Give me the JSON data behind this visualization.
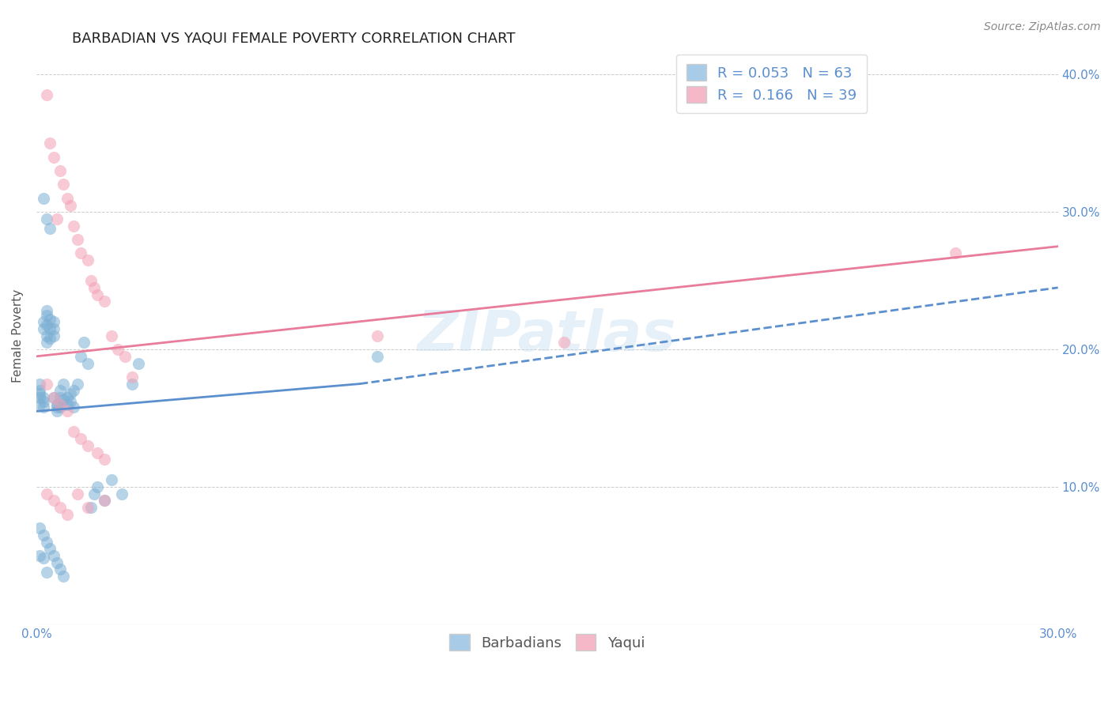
{
  "title": "BARBADIAN VS YAQUI FEMALE POVERTY CORRELATION CHART",
  "source": "Source: ZipAtlas.com",
  "ylabel": "Female Poverty",
  "watermark": "ZIPatlas",
  "xlim": [
    0.0,
    0.3
  ],
  "ylim": [
    0.0,
    0.42
  ],
  "x_tick_positions": [
    0.0,
    0.05,
    0.1,
    0.15,
    0.2,
    0.25,
    0.3
  ],
  "x_tick_labels": [
    "0.0%",
    "",
    "",
    "",
    "",
    "",
    "30.0%"
  ],
  "y_tick_positions": [
    0.0,
    0.1,
    0.2,
    0.3,
    0.4
  ],
  "y_tick_labels_right": [
    "",
    "10.0%",
    "20.0%",
    "30.0%",
    "40.0%"
  ],
  "barbadian_color": "#7bafd4",
  "yaqui_color": "#f4a0b5",
  "barbadian_line_color": "#5b8fce",
  "yaqui_line_color": "#e87c9a",
  "legend_box_barbadian": "#a8cce8",
  "legend_box_yaqui": "#f4b8c8",
  "R_barbadian": 0.053,
  "N_barbadian": 63,
  "R_yaqui": 0.166,
  "N_yaqui": 39,
  "barbadian_x": [
    0.001,
    0.001,
    0.001,
    0.001,
    0.001,
    0.002,
    0.002,
    0.002,
    0.002,
    0.002,
    0.003,
    0.003,
    0.003,
    0.003,
    0.003,
    0.004,
    0.004,
    0.004,
    0.005,
    0.005,
    0.005,
    0.005,
    0.006,
    0.006,
    0.006,
    0.007,
    0.007,
    0.007,
    0.008,
    0.008,
    0.009,
    0.009,
    0.01,
    0.01,
    0.011,
    0.011,
    0.012,
    0.013,
    0.014,
    0.015,
    0.016,
    0.017,
    0.018,
    0.02,
    0.022,
    0.025,
    0.028,
    0.03,
    0.001,
    0.002,
    0.003,
    0.004,
    0.005,
    0.006,
    0.007,
    0.008,
    0.1,
    0.002,
    0.003,
    0.004,
    0.001,
    0.002,
    0.003
  ],
  "barbadian_y": [
    0.17,
    0.165,
    0.16,
    0.168,
    0.175,
    0.165,
    0.162,
    0.158,
    0.22,
    0.215,
    0.225,
    0.218,
    0.21,
    0.228,
    0.205,
    0.215,
    0.208,
    0.222,
    0.215,
    0.22,
    0.21,
    0.165,
    0.16,
    0.158,
    0.155,
    0.165,
    0.17,
    0.158,
    0.175,
    0.163,
    0.165,
    0.16,
    0.168,
    0.162,
    0.17,
    0.158,
    0.175,
    0.195,
    0.205,
    0.19,
    0.085,
    0.095,
    0.1,
    0.09,
    0.105,
    0.095,
    0.175,
    0.19,
    0.07,
    0.065,
    0.06,
    0.055,
    0.05,
    0.045,
    0.04,
    0.035,
    0.195,
    0.31,
    0.295,
    0.288,
    0.05,
    0.048,
    0.038
  ],
  "yaqui_x": [
    0.003,
    0.004,
    0.005,
    0.006,
    0.007,
    0.008,
    0.009,
    0.01,
    0.011,
    0.012,
    0.013,
    0.015,
    0.016,
    0.017,
    0.018,
    0.02,
    0.022,
    0.024,
    0.026,
    0.028,
    0.003,
    0.005,
    0.007,
    0.009,
    0.011,
    0.013,
    0.015,
    0.018,
    0.02,
    0.1,
    0.155,
    0.27,
    0.003,
    0.005,
    0.007,
    0.009,
    0.012,
    0.015,
    0.02
  ],
  "yaqui_y": [
    0.385,
    0.35,
    0.34,
    0.295,
    0.33,
    0.32,
    0.31,
    0.305,
    0.29,
    0.28,
    0.27,
    0.265,
    0.25,
    0.245,
    0.24,
    0.235,
    0.21,
    0.2,
    0.195,
    0.18,
    0.175,
    0.165,
    0.16,
    0.155,
    0.14,
    0.135,
    0.13,
    0.125,
    0.12,
    0.21,
    0.205,
    0.27,
    0.095,
    0.09,
    0.085,
    0.08,
    0.095,
    0.085,
    0.09
  ],
  "dot_size": 120,
  "dot_alpha": 0.55,
  "background_color": "#ffffff",
  "grid_color": "#cccccc",
  "title_fontsize": 13,
  "axis_label_fontsize": 11,
  "tick_fontsize": 11,
  "legend_fontsize": 13,
  "source_fontsize": 10,
  "barb_line_x0": 0.0,
  "barb_line_x_solid_end": 0.095,
  "barb_line_x1": 0.3,
  "barb_line_y0": 0.155,
  "barb_line_y_solid_end": 0.175,
  "barb_line_y1": 0.245,
  "yaqui_line_x0": 0.0,
  "yaqui_line_x1": 0.3,
  "yaqui_line_y0": 0.195,
  "yaqui_line_y1": 0.275
}
